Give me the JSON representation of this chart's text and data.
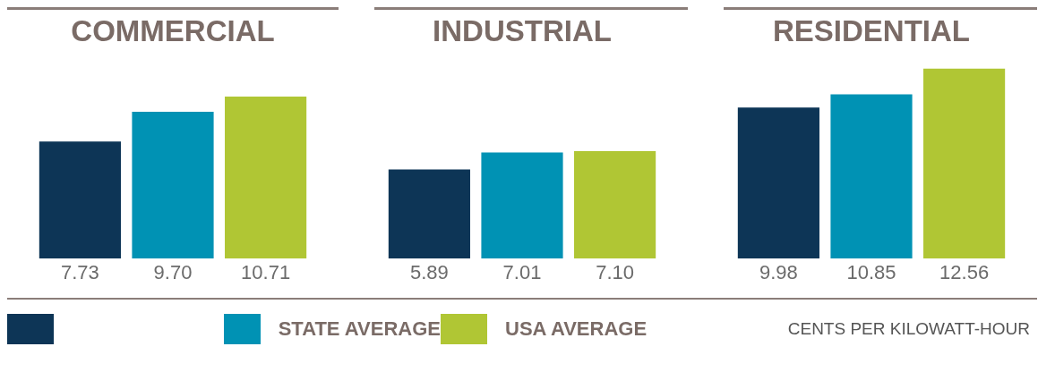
{
  "chart_data": [
    {
      "type": "bar",
      "title": "COMMERCIAL",
      "categories": [
        null
      ],
      "data_labels": true,
      "legend": "bottom",
      "series": [
        {
          "color": "#0d3556",
          "values": [
            7.73
          ],
          "value_labels": [
            "7.73"
          ]
        },
        {
          "name": "STATE AVERAGE",
          "color": "#0092b4",
          "values": [
            9.7
          ],
          "value_labels": [
            "9.70"
          ]
        },
        {
          "name": "USA AVERAGE",
          "color": "#b0c634",
          "values": [
            10.71
          ],
          "value_labels": [
            "10.71"
          ]
        }
      ]
    },
    {
      "type": "bar",
      "title": "INDUSTRIAL",
      "categories": [
        null
      ],
      "data_labels": true,
      "series": [
        {
          "color": "#0d3556",
          "values": [
            5.89
          ],
          "value_labels": [
            "5.89"
          ]
        },
        {
          "color": "#0092b4",
          "values": [
            7.01
          ],
          "value_labels": [
            "7.01"
          ]
        },
        {
          "color": "#b0c634",
          "values": [
            7.1
          ],
          "value_labels": [
            "7.10"
          ]
        }
      ]
    },
    {
      "type": "bar",
      "title": "RESIDENTIAL",
      "categories": [
        null
      ],
      "data_labels": true,
      "annotations": [
        "CENTS PER KILOWATT-HOUR"
      ],
      "series": [
        {
          "color": "#0d3556",
          "values": [
            9.98
          ],
          "value_labels": [
            "9.98"
          ]
        },
        {
          "color": "#0092b4",
          "values": [
            10.85
          ],
          "value_labels": [
            "10.85"
          ]
        },
        {
          "color": "#b0c634",
          "values": [
            12.56
          ],
          "value_labels": [
            "12.56"
          ]
        }
      ]
    }
  ]
}
